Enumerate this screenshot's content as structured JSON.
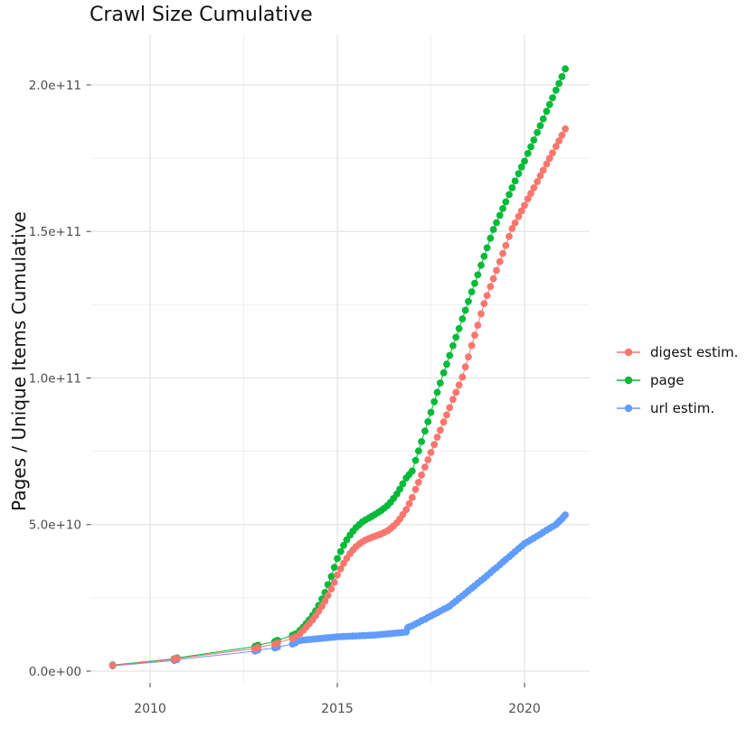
{
  "chart_data": {
    "type": "scatter",
    "title": "Crawl Size Cumulative",
    "xlabel": "",
    "ylabel": "Pages / Unique Items Cumulative",
    "grid": true,
    "legend_position": "right",
    "value_unit_note": "point values stored in billions (1e9)",
    "x_axis": {
      "ticks": [
        2010,
        2015,
        2020
      ],
      "minor_ticks": [
        2012.5,
        2017.5
      ],
      "range": [
        2008.4,
        2021.7
      ]
    },
    "y_axis": {
      "tick_values_billions": [
        0,
        50,
        100,
        150,
        200
      ],
      "tick_labels": [
        "0.0e+00",
        "5.0e+10",
        "1.0e+11",
        "1.5e+11",
        "2.0e+11"
      ],
      "minor_values_billions": [
        25,
        75,
        125,
        175
      ],
      "range_billions": [
        -4,
        217
      ]
    },
    "series": [
      {
        "name": "digest estim.",
        "color": "#F8766D",
        "points": [
          [
            2009.0,
            1.9
          ],
          [
            2010.64,
            4.0
          ],
          [
            2010.72,
            4.3
          ],
          [
            2012.8,
            7.7
          ],
          [
            2012.88,
            8.1
          ],
          [
            2013.33,
            9.2
          ],
          [
            2013.4,
            9.6
          ],
          [
            2013.8,
            11.2
          ],
          [
            2013.88,
            11.7
          ],
          [
            2014.0,
            12.8
          ],
          [
            2014.09,
            13.9
          ],
          [
            2014.17,
            15.0
          ],
          [
            2014.25,
            16.2
          ],
          [
            2014.34,
            17.5
          ],
          [
            2014.42,
            18.9
          ],
          [
            2014.5,
            20.4
          ],
          [
            2014.59,
            22.1
          ],
          [
            2014.67,
            23.9
          ],
          [
            2014.75,
            25.8
          ],
          [
            2014.84,
            28.0
          ],
          [
            2014.92,
            30.3
          ],
          [
            2015.0,
            32.8
          ],
          [
            2015.09,
            34.9
          ],
          [
            2015.17,
            36.8
          ],
          [
            2015.25,
            38.5
          ],
          [
            2015.34,
            40.1
          ],
          [
            2015.42,
            41.4
          ],
          [
            2015.5,
            42.5
          ],
          [
            2015.59,
            43.4
          ],
          [
            2015.67,
            44.1
          ],
          [
            2015.75,
            44.7
          ],
          [
            2015.84,
            45.2
          ],
          [
            2015.92,
            45.6
          ],
          [
            2016.0,
            46.0
          ],
          [
            2016.09,
            46.4
          ],
          [
            2016.17,
            46.8
          ],
          [
            2016.25,
            47.3
          ],
          [
            2016.34,
            47.9
          ],
          [
            2016.42,
            48.6
          ],
          [
            2016.5,
            49.5
          ],
          [
            2016.59,
            50.6
          ],
          [
            2016.67,
            51.9
          ],
          [
            2016.75,
            53.4
          ],
          [
            2016.84,
            55.1
          ],
          [
            2016.92,
            57.1
          ],
          [
            2017.0,
            59.2
          ],
          [
            2017.09,
            62.0
          ],
          [
            2017.17,
            64.4
          ],
          [
            2017.25,
            66.9
          ],
          [
            2017.34,
            69.6
          ],
          [
            2017.42,
            72.1
          ],
          [
            2017.5,
            74.6
          ],
          [
            2017.59,
            77.3
          ],
          [
            2017.67,
            79.8
          ],
          [
            2017.75,
            82.2
          ],
          [
            2017.84,
            85.0
          ],
          [
            2017.92,
            87.4
          ],
          [
            2018.0,
            89.9
          ],
          [
            2018.09,
            92.7
          ],
          [
            2018.17,
            95.1
          ],
          [
            2018.25,
            97.6
          ],
          [
            2018.34,
            100.3
          ],
          [
            2018.42,
            103.8
          ],
          [
            2018.5,
            107.2
          ],
          [
            2018.59,
            111.1
          ],
          [
            2018.67,
            114.6
          ],
          [
            2018.75,
            118.0
          ],
          [
            2018.84,
            121.9
          ],
          [
            2018.92,
            125.4
          ],
          [
            2019.0,
            128.1
          ],
          [
            2019.09,
            131.2
          ],
          [
            2019.17,
            133.9
          ],
          [
            2019.25,
            136.7
          ],
          [
            2019.34,
            139.7
          ],
          [
            2019.42,
            142.5
          ],
          [
            2019.5,
            145.2
          ],
          [
            2019.59,
            148.3
          ],
          [
            2019.67,
            151.0
          ],
          [
            2019.75,
            152.9
          ],
          [
            2019.84,
            155.1
          ],
          [
            2019.92,
            157.0
          ],
          [
            2020.0,
            158.9
          ],
          [
            2020.09,
            161.1
          ],
          [
            2020.17,
            163.0
          ],
          [
            2020.25,
            164.9
          ],
          [
            2020.34,
            167.0
          ],
          [
            2020.42,
            169.0
          ],
          [
            2020.5,
            170.9
          ],
          [
            2020.59,
            173.0
          ],
          [
            2020.67,
            174.9
          ],
          [
            2020.75,
            176.8
          ],
          [
            2020.84,
            179.0
          ],
          [
            2020.92,
            180.9
          ],
          [
            2021.0,
            182.8
          ],
          [
            2021.09,
            185.0
          ]
        ]
      },
      {
        "name": "page",
        "color": "#00BA38",
        "points": [
          [
            2009.0,
            2.1
          ],
          [
            2010.64,
            4.2
          ],
          [
            2010.72,
            4.5
          ],
          [
            2012.8,
            8.4
          ],
          [
            2012.88,
            8.8
          ],
          [
            2013.33,
            10.1
          ],
          [
            2013.4,
            10.5
          ],
          [
            2013.8,
            12.2
          ],
          [
            2013.88,
            12.7
          ],
          [
            2014.0,
            13.9
          ],
          [
            2014.09,
            15.0
          ],
          [
            2014.17,
            16.2
          ],
          [
            2014.25,
            17.5
          ],
          [
            2014.34,
            19.0
          ],
          [
            2014.42,
            20.6
          ],
          [
            2014.5,
            22.4
          ],
          [
            2014.59,
            24.6
          ],
          [
            2014.67,
            26.8
          ],
          [
            2014.75,
            29.5
          ],
          [
            2014.84,
            32.3
          ],
          [
            2014.92,
            35.4
          ],
          [
            2015.0,
            38.4
          ],
          [
            2015.09,
            40.8
          ],
          [
            2015.17,
            42.9
          ],
          [
            2015.25,
            44.8
          ],
          [
            2015.34,
            46.4
          ],
          [
            2015.42,
            47.8
          ],
          [
            2015.5,
            49.0
          ],
          [
            2015.59,
            50.0
          ],
          [
            2015.67,
            50.9
          ],
          [
            2015.75,
            51.6
          ],
          [
            2015.84,
            52.2
          ],
          [
            2015.92,
            52.8
          ],
          [
            2016.0,
            53.4
          ],
          [
            2016.09,
            54.1
          ],
          [
            2016.17,
            54.8
          ],
          [
            2016.25,
            55.6
          ],
          [
            2016.34,
            56.5
          ],
          [
            2016.42,
            57.6
          ],
          [
            2016.5,
            58.9
          ],
          [
            2016.59,
            60.4
          ],
          [
            2016.67,
            62.1
          ],
          [
            2016.75,
            63.9
          ],
          [
            2016.84,
            65.9
          ],
          [
            2016.92,
            67.1
          ],
          [
            2017.0,
            68.3
          ],
          [
            2017.09,
            71.9
          ],
          [
            2017.17,
            75.1
          ],
          [
            2017.25,
            78.3
          ],
          [
            2017.34,
            81.9
          ],
          [
            2017.42,
            85.1
          ],
          [
            2017.5,
            88.3
          ],
          [
            2017.59,
            91.9
          ],
          [
            2017.67,
            95.1
          ],
          [
            2017.75,
            98.3
          ],
          [
            2017.84,
            101.8
          ],
          [
            2017.92,
            104.7
          ],
          [
            2018.0,
            107.7
          ],
          [
            2018.09,
            111.0
          ],
          [
            2018.17,
            113.9
          ],
          [
            2018.25,
            116.9
          ],
          [
            2018.34,
            120.2
          ],
          [
            2018.42,
            123.1
          ],
          [
            2018.5,
            126.1
          ],
          [
            2018.59,
            129.4
          ],
          [
            2018.67,
            132.3
          ],
          [
            2018.75,
            135.2
          ],
          [
            2018.84,
            138.5
          ],
          [
            2018.92,
            141.5
          ],
          [
            2019.0,
            144.4
          ],
          [
            2019.09,
            147.7
          ],
          [
            2019.17,
            150.7
          ],
          [
            2019.25,
            153.0
          ],
          [
            2019.34,
            155.5
          ],
          [
            2019.42,
            157.8
          ],
          [
            2019.5,
            160.1
          ],
          [
            2019.59,
            162.6
          ],
          [
            2019.67,
            164.9
          ],
          [
            2019.75,
            167.2
          ],
          [
            2019.84,
            169.7
          ],
          [
            2019.92,
            172.0
          ],
          [
            2020.0,
            174.0
          ],
          [
            2020.09,
            176.6
          ],
          [
            2020.17,
            178.9
          ],
          [
            2020.25,
            181.2
          ],
          [
            2020.34,
            183.8
          ],
          [
            2020.42,
            186.1
          ],
          [
            2020.5,
            188.4
          ],
          [
            2020.59,
            191.0
          ],
          [
            2020.67,
            193.3
          ],
          [
            2020.75,
            195.6
          ],
          [
            2020.84,
            198.2
          ],
          [
            2020.92,
            200.5
          ],
          [
            2021.0,
            202.8
          ],
          [
            2021.09,
            205.5
          ]
        ]
      },
      {
        "name": "url estim.",
        "color": "#619CFF",
        "points": [
          [
            2009.0,
            1.8
          ],
          [
            2010.64,
            3.6
          ],
          [
            2010.72,
            3.9
          ],
          [
            2012.8,
            6.8
          ],
          [
            2012.88,
            7.2
          ],
          [
            2013.33,
            7.9
          ],
          [
            2013.4,
            8.2
          ],
          [
            2013.8,
            9.2
          ],
          [
            2013.88,
            9.6
          ],
          [
            2014.0,
            10.4
          ],
          [
            2014.09,
            10.6
          ],
          [
            2014.17,
            10.7
          ],
          [
            2014.25,
            10.8
          ],
          [
            2014.34,
            10.9
          ],
          [
            2014.42,
            11.0
          ],
          [
            2014.5,
            11.1
          ],
          [
            2014.59,
            11.2
          ],
          [
            2014.67,
            11.3
          ],
          [
            2014.75,
            11.4
          ],
          [
            2014.84,
            11.5
          ],
          [
            2014.92,
            11.6
          ],
          [
            2015.0,
            11.7
          ],
          [
            2015.09,
            11.75
          ],
          [
            2015.17,
            11.8
          ],
          [
            2015.25,
            11.85
          ],
          [
            2015.34,
            11.9
          ],
          [
            2015.42,
            11.95
          ],
          [
            2015.5,
            12.0
          ],
          [
            2015.59,
            12.05
          ],
          [
            2015.67,
            12.1
          ],
          [
            2015.75,
            12.15
          ],
          [
            2015.84,
            12.2
          ],
          [
            2015.92,
            12.25
          ],
          [
            2016.0,
            12.3
          ],
          [
            2016.09,
            12.4
          ],
          [
            2016.17,
            12.5
          ],
          [
            2016.25,
            12.6
          ],
          [
            2016.34,
            12.7
          ],
          [
            2016.42,
            12.8
          ],
          [
            2016.5,
            12.9
          ],
          [
            2016.59,
            13.0
          ],
          [
            2016.67,
            13.1
          ],
          [
            2016.75,
            13.2
          ],
          [
            2016.84,
            13.35
          ],
          [
            2016.88,
            14.8
          ],
          [
            2016.92,
            15.1
          ],
          [
            2017.0,
            15.5
          ],
          [
            2017.09,
            16.1
          ],
          [
            2017.17,
            16.6
          ],
          [
            2017.25,
            17.2
          ],
          [
            2017.34,
            17.7
          ],
          [
            2017.42,
            18.3
          ],
          [
            2017.5,
            18.8
          ],
          [
            2017.59,
            19.4
          ],
          [
            2017.67,
            19.9
          ],
          [
            2017.75,
            20.5
          ],
          [
            2017.84,
            21.1
          ],
          [
            2017.92,
            21.6
          ],
          [
            2018.0,
            22.2
          ],
          [
            2018.09,
            23.1
          ],
          [
            2018.17,
            23.9
          ],
          [
            2018.25,
            24.8
          ],
          [
            2018.34,
            25.7
          ],
          [
            2018.42,
            26.5
          ],
          [
            2018.5,
            27.4
          ],
          [
            2018.59,
            28.3
          ],
          [
            2018.67,
            29.1
          ],
          [
            2018.75,
            30.0
          ],
          [
            2018.84,
            30.9
          ],
          [
            2018.92,
            31.7
          ],
          [
            2019.0,
            32.6
          ],
          [
            2019.09,
            33.6
          ],
          [
            2019.17,
            34.5
          ],
          [
            2019.25,
            35.3
          ],
          [
            2019.34,
            36.3
          ],
          [
            2019.42,
            37.2
          ],
          [
            2019.5,
            38.1
          ],
          [
            2019.59,
            39.0
          ],
          [
            2019.67,
            39.9
          ],
          [
            2019.75,
            40.8
          ],
          [
            2019.84,
            41.8
          ],
          [
            2019.92,
            42.6
          ],
          [
            2020.0,
            43.5
          ],
          [
            2020.09,
            44.2
          ],
          [
            2020.17,
            44.8
          ],
          [
            2020.25,
            45.4
          ],
          [
            2020.34,
            46.1
          ],
          [
            2020.42,
            46.7
          ],
          [
            2020.5,
            47.4
          ],
          [
            2020.59,
            48.1
          ],
          [
            2020.67,
            48.7
          ],
          [
            2020.75,
            49.3
          ],
          [
            2020.84,
            50.0
          ],
          [
            2020.88,
            50.5
          ],
          [
            2020.92,
            51.0
          ],
          [
            2020.96,
            51.5
          ],
          [
            2021.0,
            52.0
          ],
          [
            2021.04,
            52.6
          ],
          [
            2021.09,
            53.3
          ]
        ]
      }
    ]
  },
  "legend": {
    "items": [
      {
        "label": "digest estim.",
        "color": "#F8766D"
      },
      {
        "label": "page",
        "color": "#00BA38"
      },
      {
        "label": "url estim.",
        "color": "#619CFF"
      }
    ]
  },
  "style": {
    "grid_major_color": "#e4e4e4",
    "grid_minor_color": "#f0f0f0",
    "tick_color": "#555555",
    "tick_label_color": "#4d4d4d"
  }
}
